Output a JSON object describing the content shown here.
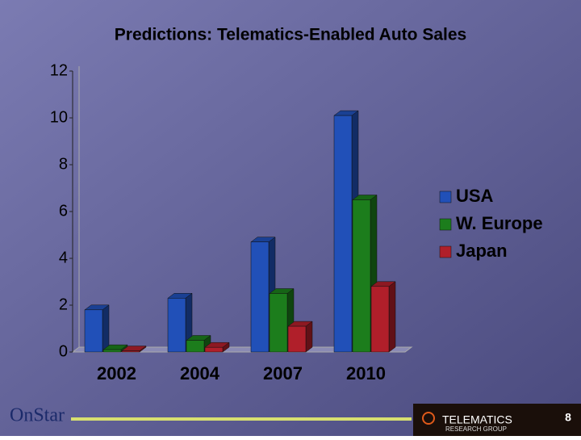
{
  "chart_data": {
    "type": "bar",
    "title": "Predictions:  Telematics-Enabled Auto Sales",
    "categories": [
      "2002",
      "2004",
      "2007",
      "2010"
    ],
    "series": [
      {
        "name": "USA",
        "color": "#2150b8",
        "values": [
          1.8,
          2.3,
          4.7,
          10.1
        ]
      },
      {
        "name": "W. Europe",
        "color": "#1c7d1c",
        "values": [
          0.1,
          0.5,
          2.5,
          6.5
        ]
      },
      {
        "name": "Japan",
        "color": "#b01f2a",
        "values": [
          0.05,
          0.2,
          1.1,
          2.8
        ]
      }
    ],
    "ylim": [
      0,
      12
    ],
    "yticks": [
      0,
      2,
      4,
      6,
      8,
      10,
      12
    ],
    "grid": false,
    "legend": "right"
  },
  "footer": {
    "logo": "OnStar",
    "brand": "TELEMATICS",
    "brand_sub": "RESEARCH GROUP",
    "page": "8"
  }
}
